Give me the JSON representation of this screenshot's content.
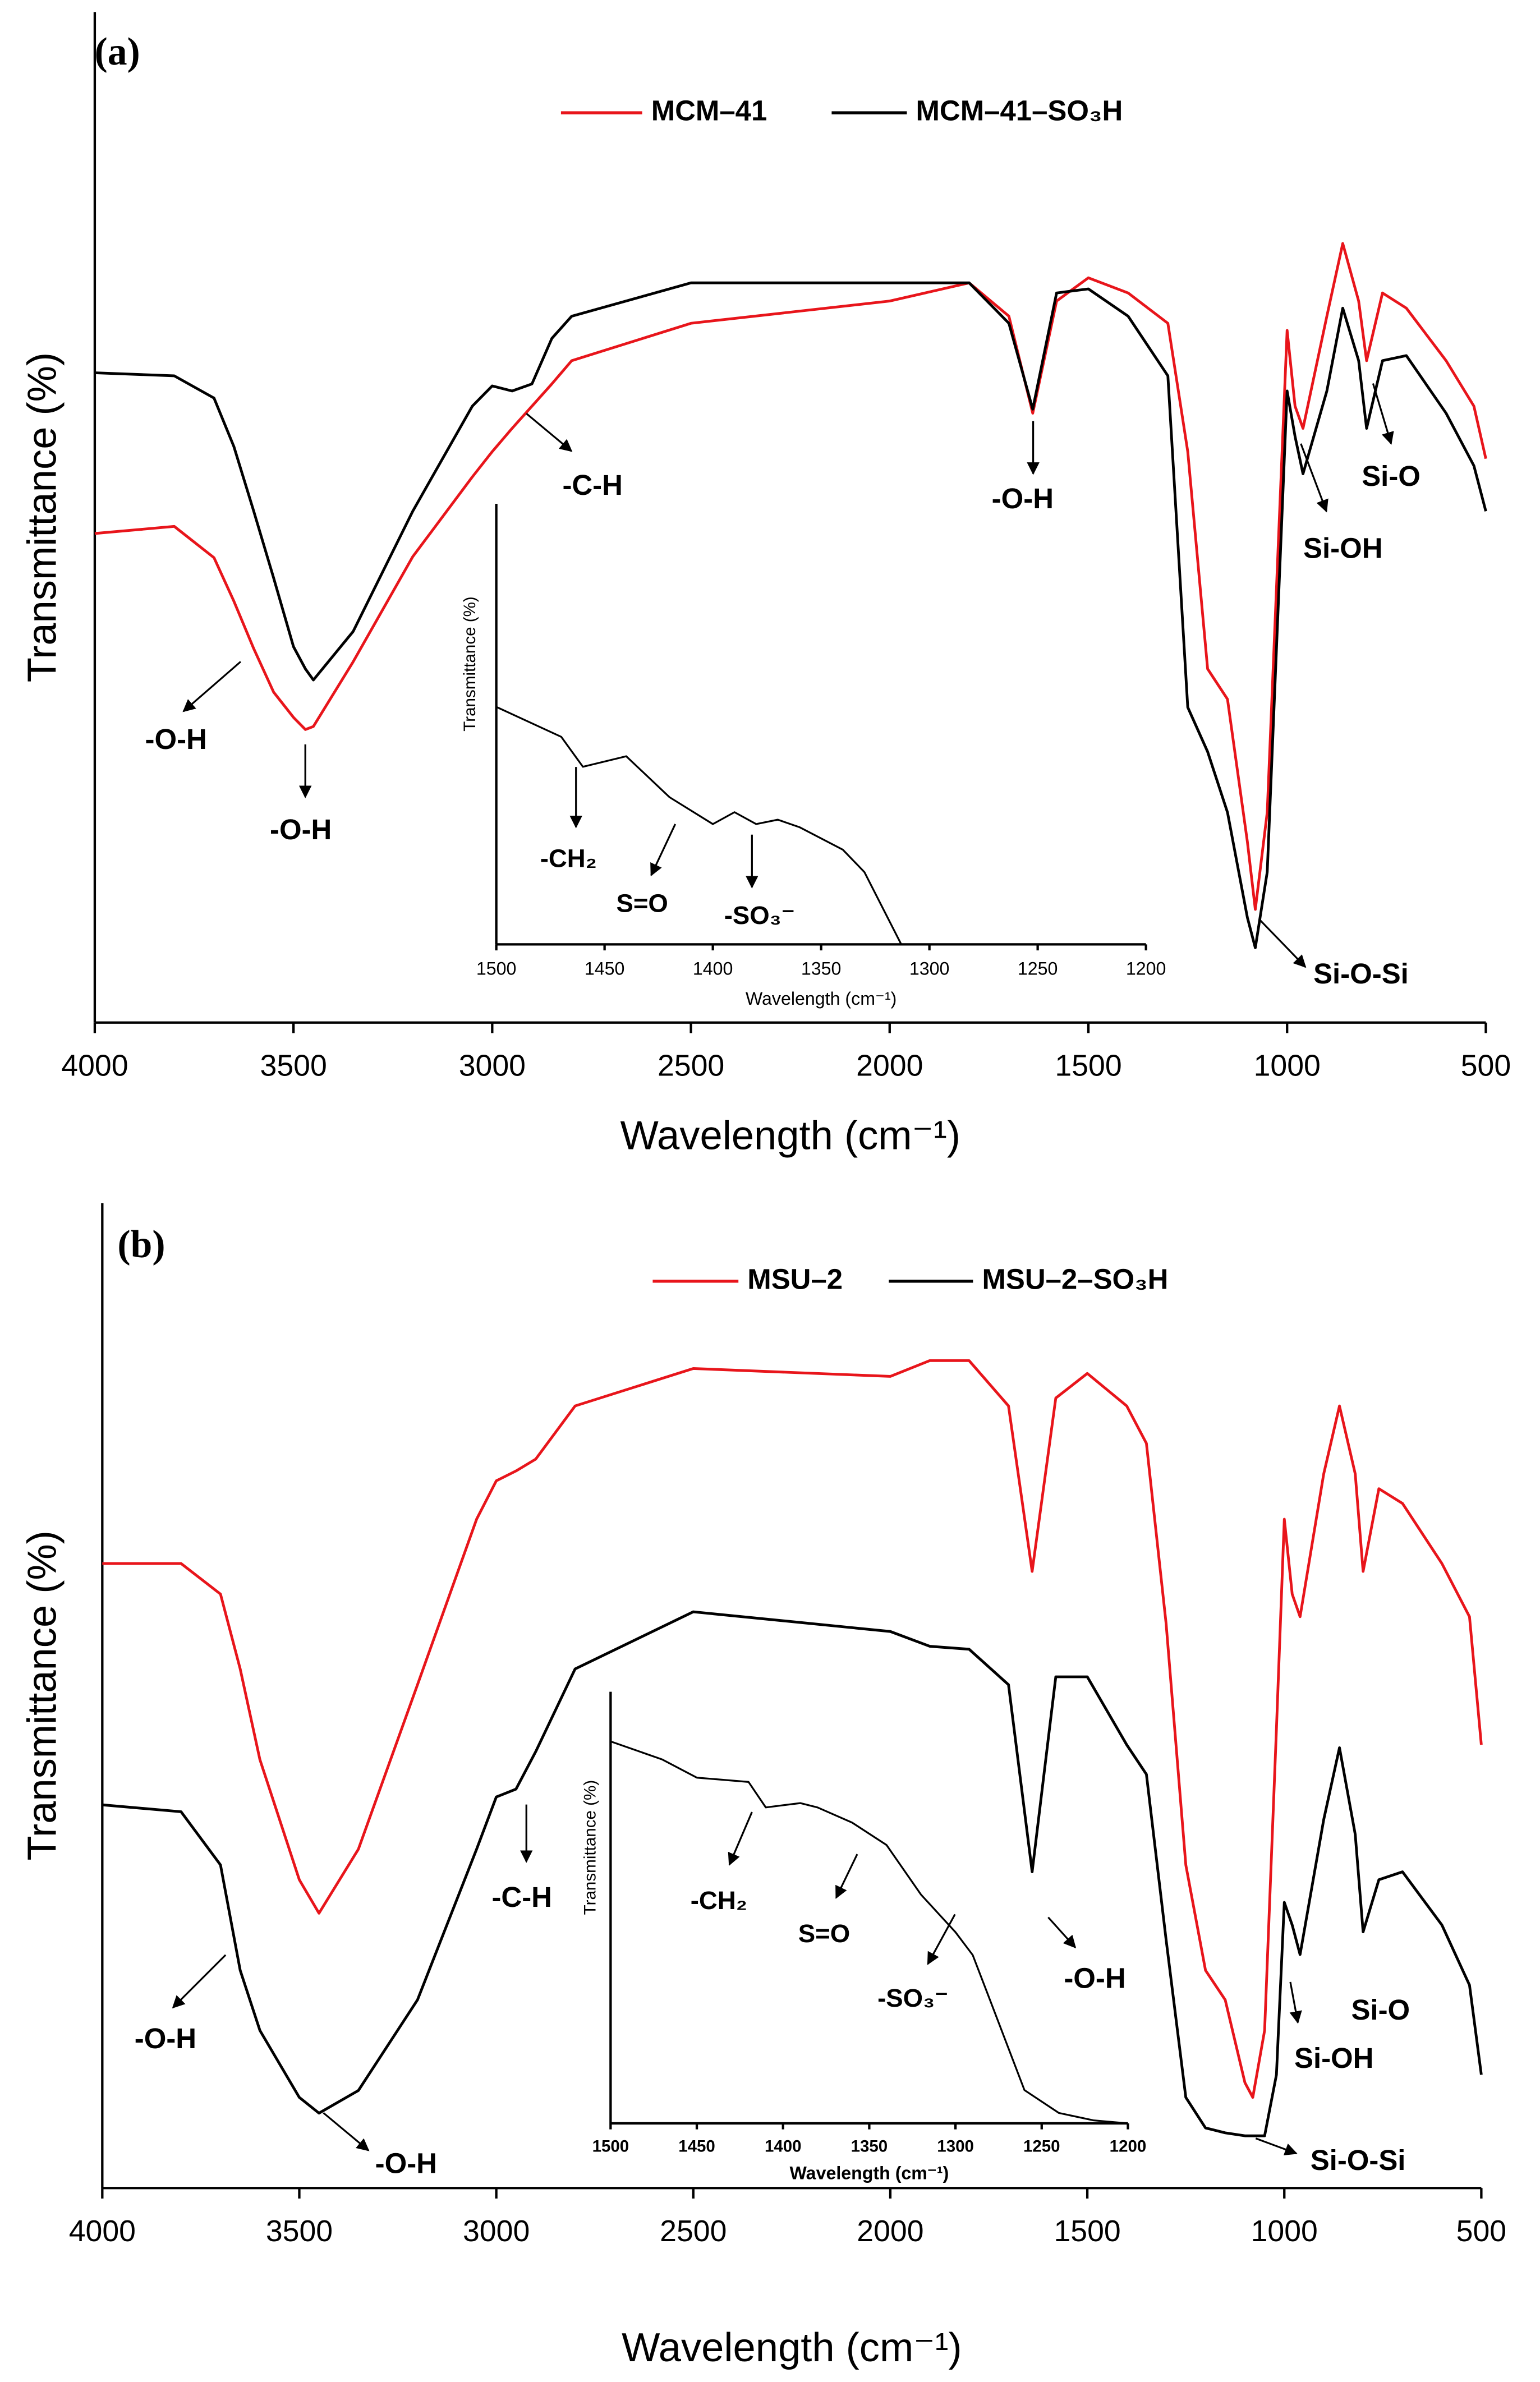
{
  "chart_data": [
    {
      "type": "line",
      "label": "(a)",
      "x_label": "Wavelength (cm⁻¹)",
      "y_label": "Transmittance (%)",
      "x": [
        4000,
        3800,
        3700,
        3650,
        3600,
        3550,
        3500,
        3470,
        3450,
        3350,
        3200,
        3050,
        3000,
        2950,
        2900,
        2850,
        2800,
        2500,
        2000,
        1800,
        1700,
        1640,
        1580,
        1500,
        1400,
        1300,
        1250,
        1200,
        1150,
        1100,
        1080,
        1050,
        1000,
        980,
        960,
        900,
        860,
        820,
        800,
        760,
        700,
        600,
        530,
        500
      ],
      "series": [
        {
          "name": "MCM–41",
          "color": "#e8151b",
          "values": [
            48.4,
            49.1,
            46,
            41.7,
            37,
            32.7,
            30.2,
            29.0,
            29.3,
            35.7,
            46.1,
            54,
            56.5,
            58.8,
            61.0,
            63.2,
            65.5,
            69.2,
            71.4,
            73.2,
            69.9,
            60.3,
            71.4,
            73.7,
            72.2,
            69.2,
            56.5,
            35.0,
            32.0,
            17.9,
            11.2,
            20.8,
            68.5,
            61.0,
            58.8,
            69.9,
            77.1,
            71.4,
            65.5,
            72.2,
            70.7,
            65.5,
            61.0,
            55.8
          ]
        },
        {
          "name": "MCM–41–SO₃H",
          "color": "#000000",
          "values": [
            64.3,
            64.0,
            61.8,
            57,
            50.6,
            44,
            37.2,
            35,
            33.9,
            38.7,
            50.6,
            61.0,
            63.0,
            62.5,
            63.2,
            67.7,
            69.9,
            73.2,
            73.2,
            73.2,
            69.2,
            60.7,
            72.2,
            72.6,
            69.9,
            64,
            31.2,
            26.8,
            20.8,
            10.4,
            7.4,
            14.9,
            62.5,
            58.0,
            54.3,
            62.5,
            70.7,
            65.5,
            58.8,
            65.5,
            66.0,
            60.3,
            55.1,
            50.6
          ]
        }
      ],
      "xlim": [
        4000,
        500
      ],
      "xticks": [
        4000,
        3500,
        3000,
        2500,
        2000,
        1500,
        1000,
        500
      ],
      "ylim": [
        0,
        100
      ],
      "annotations": [
        "-O-H",
        "-O-H",
        "-C-H",
        "-O-H",
        "Si-OH",
        "Si-O",
        "Si-O-Si"
      ]
    },
    {
      "type": "line",
      "x_label": "Wavelength (cm⁻¹)",
      "y_label": "Transmittance (%)",
      "x": [
        1500,
        1470,
        1460,
        1440,
        1420,
        1400,
        1390,
        1380,
        1370,
        1360,
        1340,
        1330,
        1313
      ],
      "series": [
        {
          "color": "#000000",
          "values": [
            53.9,
            47.1,
            40.3,
            42.7,
            33.4,
            27.3,
            30.0,
            27.3,
            28.3,
            26.6,
            21.5,
            16.4,
            0
          ]
        }
      ],
      "xlim": [
        1500,
        1200
      ],
      "xticks": [
        1500,
        1450,
        1400,
        1350,
        1300,
        1250,
        1200
      ],
      "ylim": [
        0,
        100
      ],
      "annotations": [
        "-CH₂",
        "S=O",
        "-SO₃⁻"
      ]
    },
    {
      "type": "line",
      "label": "(b)",
      "x_label": "Wavelength (cm⁻¹)",
      "y_label": "Transmittance (%)",
      "x": [
        4000,
        3800,
        3700,
        3650,
        3600,
        3500,
        3450,
        3350,
        3200,
        3050,
        3000,
        2950,
        2900,
        2800,
        2500,
        2000,
        1900,
        1800,
        1700,
        1640,
        1580,
        1500,
        1400,
        1350,
        1300,
        1250,
        1200,
        1150,
        1100,
        1080,
        1050,
        1020,
        1000,
        980,
        960,
        900,
        860,
        820,
        800,
        760,
        700,
        600,
        530,
        500
      ],
      "series": [
        {
          "name": "MSU–2",
          "color": "#e8151b",
          "values": [
            63.4,
            63.4,
            60.3,
            52.7,
            43.5,
            31.3,
            27.9,
            34.4,
            51.1,
            67.9,
            71.8,
            72.8,
            74.0,
            79.4,
            83.2,
            82.4,
            84.0,
            84.0,
            79.4,
            62.6,
            80.2,
            82.7,
            79.4,
            75.6,
            57.3,
            32.8,
            22.1,
            19.1,
            10.7,
            9.2,
            16.0,
            46.6,
            67.9,
            60.3,
            58.0,
            72.5,
            79.4,
            72.5,
            62.6,
            71.0,
            69.5,
            63.4,
            58.0,
            45.0
          ]
        },
        {
          "name": "MSU–2–SO₃H",
          "color": "#000000",
          "values": [
            38.9,
            38.2,
            32.8,
            22.1,
            16.0,
            9.2,
            7.6,
            9.9,
            19.1,
            34.4,
            39.7,
            40.5,
            44.3,
            52.7,
            58.5,
            56.5,
            55.0,
            54.7,
            51.1,
            32.1,
            51.9,
            51.9,
            45.0,
            42.0,
            25.2,
            9.2,
            6.1,
            5.6,
            5.3,
            5.3,
            5.3,
            11.5,
            29.0,
            26.7,
            23.7,
            37.4,
            44.7,
            35.9,
            26.0,
            31.3,
            32.1,
            26.7,
            20.6,
            11.5
          ]
        }
      ],
      "xlim": [
        4000,
        500
      ],
      "xticks": [
        4000,
        3500,
        3000,
        2500,
        2000,
        1500,
        1000,
        500
      ],
      "ylim": [
        0,
        100
      ],
      "annotations": [
        "-O-H",
        "-O-H",
        "-C-H",
        "-O-H",
        "Si-OH",
        "Si-O",
        "Si-O-Si"
      ]
    },
    {
      "type": "line",
      "x_label": "Wavelength (cm⁻¹)",
      "y_label": "Transmittance (%)",
      "x": [
        1500,
        1470,
        1450,
        1420,
        1410,
        1390,
        1380,
        1360,
        1340,
        1320,
        1300,
        1290,
        1280,
        1260,
        1240,
        1220,
        1200
      ],
      "series": [
        {
          "color": "#000000",
          "values": [
            88.5,
            84.3,
            80.1,
            79.1,
            73.2,
            74.2,
            73.2,
            69.7,
            64.5,
            53.0,
            44.3,
            39.0,
            28.6,
            7.7,
            2.4,
            0.7,
            0
          ]
        }
      ],
      "xlim": [
        1500,
        1200
      ],
      "xticks": [
        1500,
        1450,
        1400,
        1350,
        1300,
        1250,
        1200
      ],
      "ylim": [
        0,
        100
      ],
      "annotations": [
        "-CH₂",
        "S=O",
        "-SO₃⁻"
      ]
    }
  ]
}
